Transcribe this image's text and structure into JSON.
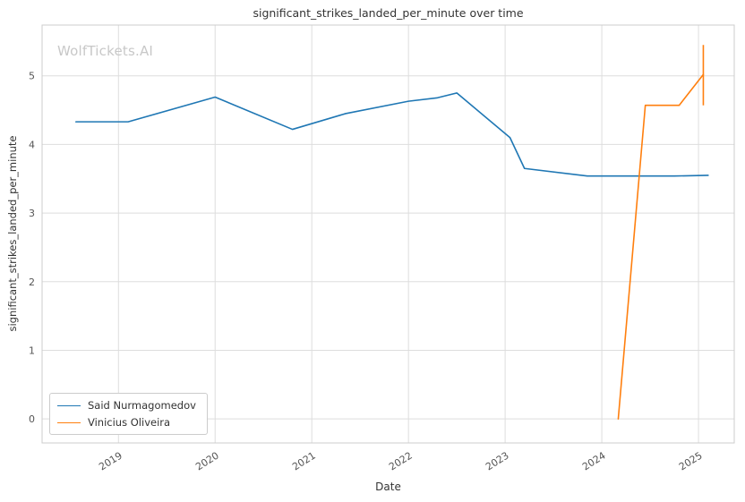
{
  "watermark": "WolfTickets.AI",
  "chart_data": {
    "type": "line",
    "title": "significant_strikes_landed_per_minute over time",
    "xlabel": "Date",
    "ylabel": "significant_strikes_landed_per_minute",
    "xlim": [
      2018.21,
      2025.37
    ],
    "ylim": [
      -0.35,
      5.74
    ],
    "xticks": [
      2019,
      2020,
      2021,
      2022,
      2023,
      2024,
      2025
    ],
    "yticks": [
      0,
      1,
      2,
      3,
      4,
      5
    ],
    "grid": true,
    "grid_color": "#dddddd",
    "spine_color": "#cccccc",
    "tick_label_color": "#555555",
    "legend_position": "lower left",
    "series": [
      {
        "name": "Said Nurmagomedov",
        "color": "#1f77b4",
        "x": [
          2018.56,
          2019.1,
          2020.0,
          2020.8,
          2021.35,
          2022.0,
          2022.3,
          2022.5,
          2023.05,
          2023.2,
          2023.85,
          2024.3,
          2024.75,
          2025.1
        ],
        "y": [
          4.33,
          4.33,
          4.69,
          4.22,
          4.45,
          4.63,
          4.68,
          4.75,
          4.1,
          3.65,
          3.54,
          3.54,
          3.54,
          3.55
        ]
      },
      {
        "name": "Vinicius Oliveira",
        "color": "#ff7f0e",
        "x": [
          2024.17,
          2024.45,
          2024.8,
          2025.05
        ],
        "y": [
          0.0,
          4.57,
          4.57,
          5.02
        ],
        "error_bar": {
          "x": 2025.05,
          "low": 4.57,
          "high": 5.45
        }
      }
    ]
  }
}
